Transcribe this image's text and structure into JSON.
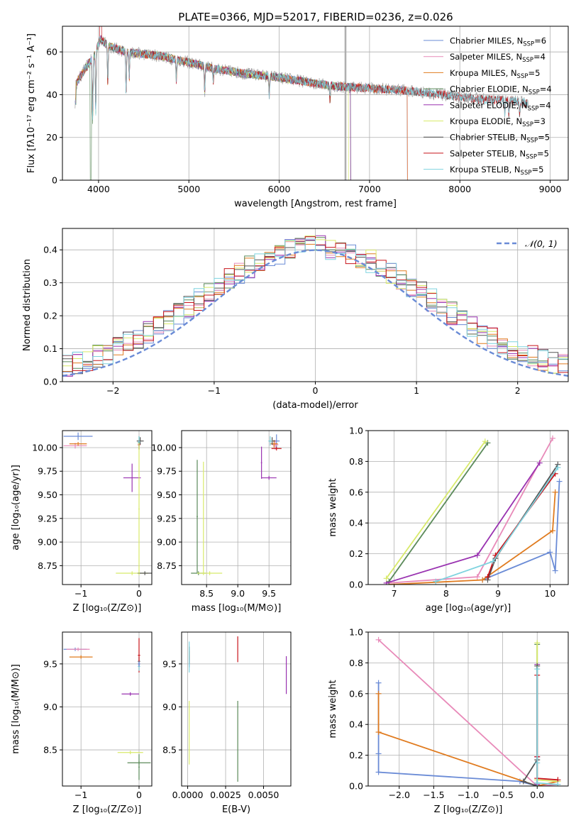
{
  "figure_title": "PLATE=0366, MJD=52017, FIBERID=0236, z=0.026",
  "colors": {
    "Chabrier MILES": "#6a8bd6",
    "Salpeter MILES": "#e88ab9",
    "Kroupa MILES": "#e07b1f",
    "Chabrier ELODIE": "#5b8a5a",
    "Salpeter ELODIE": "#9932b0",
    "Kroupa ELODIE": "#d8ea6a",
    "Chabrier STELIB": "#555555",
    "Salpeter STELIB": "#c8141b",
    "Kroupa STELIB": "#7ed3df",
    "reference": "#6a8bd6"
  },
  "chart_data": [
    {
      "id": "spectrum",
      "type": "line",
      "xlabel": "wavelength [Angstrom, rest frame]",
      "ylabel": "Flux [fλ10⁻¹⁷ erg cm⁻² s⁻¹ A⁻¹]",
      "xlim": [
        3600,
        9200
      ],
      "ylim": [
        0,
        72
      ],
      "xticks": [
        4000,
        5000,
        6000,
        7000,
        8000,
        9000
      ],
      "yticks": [
        0,
        20,
        40,
        60
      ],
      "grid": true,
      "legend_position": "top-right",
      "series": [
        {
          "name": "Chabrier MILES, N_SSP=6",
          "end": 7450,
          "nan_start": 7420
        },
        {
          "name": "Salpeter MILES, N_SSP=4",
          "end": 7450,
          "nan_start": 7420
        },
        {
          "name": "Kroupa MILES, N_SSP=5",
          "end": 7450,
          "nan_start": 7420
        },
        {
          "name": "Chabrier ELODIE, N_SSP=4",
          "end": 6800,
          "nan_start": 6790
        },
        {
          "name": "Salpeter ELODIE, N_SSP=4",
          "end": 6800,
          "nan_start": 6790
        },
        {
          "name": "Kroupa ELODIE, N_SSP=3",
          "end": 6800,
          "nan_start": 6770
        },
        {
          "name": "Chabrier STELIB, N_SSP=5",
          "end": 8750,
          "nan_start": null
        },
        {
          "name": "Salpeter STELIB, N_SSP=5",
          "end": 8750,
          "nan_start": null
        },
        {
          "name": "Kroupa STELIB, N_SSP=5",
          "end": 8750,
          "nan_start": null
        }
      ],
      "data_trace_color": "#aaaaaa",
      "data_spikes": [
        {
          "x": 6728,
          "ymin": 0,
          "ymax": 72
        },
        {
          "x": 6732,
          "ymin": 0,
          "ymax": 72
        },
        {
          "x": 6740,
          "ymin": 0,
          "ymax": 72
        }
      ],
      "continuum_points": [
        [
          3750,
          45
        ],
        [
          3850,
          52
        ],
        [
          3950,
          58
        ],
        [
          4020,
          66
        ],
        [
          4100,
          63
        ],
        [
          4300,
          60
        ],
        [
          4500,
          59
        ],
        [
          4700,
          58
        ],
        [
          5000,
          55
        ],
        [
          5300,
          52
        ],
        [
          5600,
          50
        ],
        [
          6000,
          48
        ],
        [
          6300,
          46
        ],
        [
          6600,
          44
        ],
        [
          7000,
          43
        ],
        [
          7400,
          42
        ],
        [
          7800,
          40
        ],
        [
          8200,
          38
        ],
        [
          8600,
          37
        ],
        [
          8750,
          36
        ]
      ],
      "absorption_features": [
        {
          "x": 3934,
          "depth": 30
        },
        {
          "x": 3969,
          "depth": 28
        },
        {
          "x": 4102,
          "depth": 18
        },
        {
          "x": 4305,
          "depth": 20
        },
        {
          "x": 4340,
          "depth": 12
        },
        {
          "x": 4861,
          "depth": 10
        },
        {
          "x": 5175,
          "depth": 12
        },
        {
          "x": 5270,
          "depth": 6
        },
        {
          "x": 5890,
          "depth": 9
        },
        {
          "x": 6563,
          "depth": 7
        },
        {
          "x": 8498,
          "depth": 6
        },
        {
          "x": 8542,
          "depth": 8
        },
        {
          "x": 8662,
          "depth": 7
        }
      ]
    },
    {
      "id": "residuals",
      "type": "histogram",
      "xlabel": "(data-model)/error",
      "ylabel": "Normed distribution",
      "xlim": [
        -2.5,
        2.5
      ],
      "ylim": [
        0,
        0.465
      ],
      "xticks": [
        -2,
        -1,
        0,
        1,
        2
      ],
      "yticks": [
        0.0,
        0.1,
        0.2,
        0.3,
        0.4
      ],
      "grid": true,
      "legend_position": "top-right",
      "reference_curve": {
        "label": "𝒩(0, 1)",
        "mean": 0,
        "sigma": 1
      },
      "bin_width": 0.1,
      "bin_start": -2.5
    },
    {
      "id": "age_vs_Z",
      "type": "errorbar",
      "xlabel": "Z [log₁₀(Z/Z⊙)]",
      "ylabel": "age  [log₁₀(age/yr)]",
      "xlim": [
        -1.32,
        0.22
      ],
      "ylim": [
        8.55,
        10.18
      ],
      "xticks": [
        -1,
        0
      ],
      "yticks": [
        8.75,
        9.0,
        9.25,
        9.5,
        9.75,
        10.0
      ],
      "grid": true,
      "points": [
        {
          "m": "Chabrier MILES",
          "x": -1.05,
          "y": 10.12,
          "xerr": 0.25,
          "yerr": 0.04
        },
        {
          "m": "Salpeter MILES",
          "x": -1.1,
          "y": 10.02,
          "xerr": 0.2,
          "yerr": 0.03
        },
        {
          "m": "Kroupa MILES",
          "x": -1.05,
          "y": 10.04,
          "xerr": 0.15,
          "yerr": 0.02
        },
        {
          "m": "Chabrier ELODIE",
          "x": 0.0,
          "y": 10.05,
          "xerr": 0.02,
          "yerr": 0.07
        },
        {
          "m": "Salpeter ELODIE",
          "x": -0.12,
          "y": 9.68,
          "xerr": 0.15,
          "yerr": 0.15
        },
        {
          "m": "Kroupa ELODIE",
          "x": -0.12,
          "y": 8.67,
          "xerr": 0.28,
          "yerr": 0.02
        },
        {
          "m": "Chabrier STELIB",
          "x": 0.1,
          "y": 8.67,
          "xerr": 0.12,
          "yerr": 0.02
        },
        {
          "m": "Chabrier STELIB",
          "x": 0.02,
          "y": 10.07,
          "xerr": 0.06,
          "yerr": 0.04
        },
        {
          "m": "Salpeter STELIB",
          "x": 0.0,
          "y": 10.03,
          "xerr": 0.02,
          "yerr": 0.05
        },
        {
          "m": "Kroupa STELIB",
          "x": 0.0,
          "y": 10.06,
          "xerr": 0.02,
          "yerr": 0.06
        },
        {
          "m": "Kroupa ELODIE",
          "x": 0.0,
          "y": 9.35,
          "xerr": 0.01,
          "yerr": 0.7
        }
      ]
    },
    {
      "id": "age_vs_mass",
      "type": "errorbar",
      "xlabel": "mass [log₁₀(M/M⊙)]",
      "ylabel": "",
      "xlim": [
        8.1,
        9.85
      ],
      "ylim": [
        8.55,
        10.18
      ],
      "xticks": [
        8.5,
        9.0,
        9.5
      ],
      "yticks": [
        8.75,
        9.0,
        9.25,
        9.5,
        9.75,
        10.0
      ],
      "grid": true,
      "points": [
        {
          "m": "Chabrier MILES",
          "x": 9.62,
          "y": 10.07,
          "xerr": 0.05,
          "yerr": 0.07
        },
        {
          "m": "Salpeter MILES",
          "x": 9.6,
          "y": 10.03,
          "xerr": 0.05,
          "yerr": 0.05
        },
        {
          "m": "Kroupa MILES",
          "x": 9.58,
          "y": 10.04,
          "xerr": 0.06,
          "yerr": 0.04
        },
        {
          "m": "Chabrier ELODIE",
          "x": 8.37,
          "y": 8.67,
          "xerr": 0.12,
          "yerr": 0.02
        },
        {
          "m": "Chabrier ELODIE",
          "x": 8.35,
          "y": 9.27,
          "xerr": 0.01,
          "yerr": 0.6
        },
        {
          "m": "Salpeter ELODIE",
          "x": 9.5,
          "y": 9.68,
          "xerr": 0.12,
          "yerr": 0.02
        },
        {
          "m": "Salpeter ELODIE",
          "x": 9.38,
          "y": 9.84,
          "xerr": 0.01,
          "yerr": 0.17
        },
        {
          "m": "Kroupa ELODIE",
          "x": 8.45,
          "y": 9.25,
          "xerr": 0.01,
          "yerr": 0.6
        },
        {
          "m": "Kroupa ELODIE",
          "x": 8.55,
          "y": 8.67,
          "xerr": 0.2,
          "yerr": 0.02
        },
        {
          "m": "Chabrier STELIB",
          "x": 9.55,
          "y": 10.07,
          "xerr": 0.05,
          "yerr": 0.04
        },
        {
          "m": "Salpeter STELIB",
          "x": 9.62,
          "y": 9.99,
          "xerr": 0.08,
          "yerr": 0.02
        },
        {
          "m": "Kroupa STELIB",
          "x": 9.52,
          "y": 10.07,
          "xerr": 0.03,
          "yerr": 0.05
        }
      ]
    },
    {
      "id": "weight_vs_age",
      "type": "line",
      "xlabel": "age  [log₁₀(age/yr)]",
      "ylabel": "mass weight",
      "xlim": [
        6.5,
        10.35
      ],
      "ylim": [
        0,
        1.0
      ],
      "xticks": [
        7,
        8,
        9,
        10
      ],
      "yticks": [
        0.0,
        0.2,
        0.4,
        0.6,
        0.8,
        1.0
      ],
      "grid": true,
      "series": [
        {
          "m": "Chabrier MILES",
          "points": [
            [
              8.7,
              0.03
            ],
            [
              10.0,
              0.21
            ],
            [
              10.1,
              0.09
            ],
            [
              10.18,
              0.67
            ]
          ]
        },
        {
          "m": "Salpeter MILES",
          "points": [
            [
              6.9,
              0.01
            ],
            [
              8.6,
              0.05
            ],
            [
              10.05,
              0.95
            ]
          ]
        },
        {
          "m": "Kroupa MILES",
          "points": [
            [
              6.9,
              0.0
            ],
            [
              8.7,
              0.03
            ],
            [
              10.05,
              0.35
            ],
            [
              10.1,
              0.6
            ]
          ]
        },
        {
          "m": "Chabrier ELODIE",
          "points": [
            [
              6.9,
              0.02
            ],
            [
              8.8,
              0.92
            ]
          ]
        },
        {
          "m": "Salpeter ELODIE",
          "points": [
            [
              6.85,
              0.01
            ],
            [
              8.6,
              0.19
            ],
            [
              9.8,
              0.79
            ]
          ]
        },
        {
          "m": "Kroupa ELODIE",
          "points": [
            [
              6.85,
              0.04
            ],
            [
              8.75,
              0.93
            ]
          ]
        },
        {
          "m": "Chabrier STELIB",
          "points": [
            [
              8.8,
              0.03
            ],
            [
              8.95,
              0.17
            ],
            [
              10.15,
              0.78
            ]
          ]
        },
        {
          "m": "Salpeter STELIB",
          "points": [
            [
              8.8,
              0.05
            ],
            [
              8.95,
              0.19
            ],
            [
              10.1,
              0.72
            ]
          ]
        },
        {
          "m": "Kroupa STELIB",
          "points": [
            [
              7.8,
              0.02
            ],
            [
              8.9,
              0.15
            ],
            [
              10.15,
              0.76
            ]
          ]
        }
      ]
    },
    {
      "id": "mass_vs_Z",
      "type": "errorbar",
      "xlabel": "Z [log₁₀(Z/Z⊙)]",
      "ylabel": "mass [log₁₀(M/M⊙)]",
      "xlim": [
        -1.32,
        0.22
      ],
      "ylim": [
        8.08,
        9.87
      ],
      "xticks": [
        -1,
        0
      ],
      "yticks": [
        8.5,
        9.0,
        9.5
      ],
      "grid": true,
      "points": [
        {
          "m": "Chabrier MILES",
          "x": -1.1,
          "y": 9.67,
          "xerr": 0.2,
          "yerr": 0.02
        },
        {
          "m": "Salpeter MILES",
          "x": -1.05,
          "y": 9.67,
          "xerr": 0.2,
          "yerr": 0.02
        },
        {
          "m": "Kroupa MILES",
          "x": -1.0,
          "y": 9.58,
          "xerr": 0.2,
          "yerr": 0.02
        },
        {
          "m": "Chabrier ELODIE",
          "x": 0.0,
          "y": 8.35,
          "xerr": 0.2,
          "yerr": 0.02
        },
        {
          "m": "Chabrier ELODIE",
          "x": 0.0,
          "y": 8.3,
          "xerr": 0.01,
          "yerr": 0.15
        },
        {
          "m": "Salpeter ELODIE",
          "x": -0.15,
          "y": 9.15,
          "xerr": 0.15,
          "yerr": 0.02
        },
        {
          "m": "Kroupa ELODIE",
          "x": -0.15,
          "y": 8.47,
          "xerr": 0.22,
          "yerr": 0.02
        },
        {
          "m": "Chabrier STELIB",
          "x": 0.0,
          "y": 9.53,
          "xerr": 0.02,
          "yerr": 0.05
        },
        {
          "m": "Salpeter STELIB",
          "x": 0.0,
          "y": 9.6,
          "xerr": 0.02,
          "yerr": 0.2
        },
        {
          "m": "Kroupa STELIB",
          "x": 0.0,
          "y": 9.47,
          "xerr": 0.02,
          "yerr": 0.05
        },
        {
          "m": "Chabrier MILES",
          "x": 0.0,
          "y": 9.5,
          "xerr": 0.02,
          "yerr": 0.03
        }
      ]
    },
    {
      "id": "mass_vs_EBV",
      "type": "errorbar",
      "xlabel": "E(B-V)",
      "ylabel": "",
      "xlim": [
        -0.0004,
        0.0068
      ],
      "ylim": [
        8.08,
        9.87
      ],
      "xticks": [
        0.0,
        0.0025,
        0.005
      ],
      "xtick_labels": [
        "0.0000",
        "0.0025",
        "0.0050"
      ],
      "yticks": [
        8.5,
        9.0,
        9.5
      ],
      "grid": true,
      "points": [
        {
          "m": "Chabrier MILES",
          "x": 0.0001,
          "y": 9.52,
          "xerr": 0.0,
          "yerr": 0.06
        },
        {
          "m": "Salpeter MILES",
          "x": 0.0001,
          "y": 9.55,
          "xerr": 0.0,
          "yerr": 0.05
        },
        {
          "m": "Kroupa MILES",
          "x": 0.0001,
          "y": 9.6,
          "xerr": 0.0,
          "yerr": 0.05
        },
        {
          "m": "Chabrier ELODIE",
          "x": 0.0033,
          "y": 8.6,
          "xerr": 0.0,
          "yerr": 0.47
        },
        {
          "m": "Salpeter ELODIE",
          "x": 0.0065,
          "y": 9.37,
          "xerr": 0.0,
          "yerr": 0.22
        },
        {
          "m": "Kroupa ELODIE",
          "x": 0.0001,
          "y": 8.7,
          "xerr": 0.0,
          "yerr": 0.37
        },
        {
          "m": "Chabrier STELIB",
          "x": 0.0001,
          "y": 9.6,
          "xerr": 0.0,
          "yerr": 0.1
        },
        {
          "m": "Salpeter STELIB",
          "x": 0.0033,
          "y": 9.67,
          "xerr": 0.0,
          "yerr": 0.15
        },
        {
          "m": "Kroupa STELIB",
          "x": 0.0001,
          "y": 9.58,
          "xerr": 0.0,
          "yerr": 0.18
        }
      ]
    },
    {
      "id": "weight_vs_Z",
      "type": "line",
      "xlabel": "Z [log₁₀(Z/Z⊙)]",
      "ylabel": "mass weight",
      "xlim": [
        -2.45,
        0.45
      ],
      "ylim": [
        0,
        1.0
      ],
      "xticks": [
        -2.0,
        -1.5,
        -1.0,
        -0.5,
        0.0
      ],
      "yticks": [
        0.0,
        0.2,
        0.4,
        0.6,
        0.8,
        1.0
      ],
      "grid": true,
      "series": [
        {
          "m": "Chabrier MILES",
          "points": [
            [
              -2.3,
              0.67
            ],
            [
              -2.3,
              0.21
            ],
            [
              -2.3,
              0.09
            ],
            [
              -0.25,
              0.03
            ],
            [
              0.0,
              0.0
            ]
          ]
        },
        {
          "m": "Salpeter MILES",
          "points": [
            [
              -2.3,
              0.95
            ],
            [
              0.0,
              0.0
            ],
            [
              0.3,
              0.01
            ]
          ]
        },
        {
          "m": "Kroupa MILES",
          "points": [
            [
              -2.3,
              0.6
            ],
            [
              -2.3,
              0.35
            ],
            [
              0.0,
              0.0
            ],
            [
              0.3,
              0.03
            ]
          ]
        },
        {
          "m": "Chabrier ELODIE",
          "points": [
            [
              0.0,
              0.92
            ],
            [
              0.0,
              0.02
            ],
            [
              0.0,
              0.0
            ]
          ]
        },
        {
          "m": "Salpeter ELODIE",
          "points": [
            [
              0.0,
              0.79
            ],
            [
              0.0,
              0.19
            ],
            [
              0.0,
              0.01
            ]
          ]
        },
        {
          "m": "Kroupa ELODIE",
          "points": [
            [
              0.0,
              0.93
            ],
            [
              0.0,
              0.04
            ],
            [
              0.3,
              0.03
            ]
          ]
        },
        {
          "m": "Chabrier STELIB",
          "points": [
            [
              0.0,
              0.78
            ],
            [
              0.0,
              0.17
            ],
            [
              -0.2,
              0.03
            ],
            [
              0.0,
              0.0
            ]
          ]
        },
        {
          "m": "Salpeter STELIB",
          "points": [
            [
              0.0,
              0.72
            ],
            [
              0.0,
              0.19
            ],
            [
              0.0,
              0.05
            ],
            [
              0.3,
              0.04
            ]
          ]
        },
        {
          "m": "Kroupa STELIB",
          "points": [
            [
              0.0,
              0.76
            ],
            [
              0.0,
              0.15
            ],
            [
              0.0,
              0.02
            ],
            [
              0.3,
              0.01
            ]
          ]
        }
      ]
    }
  ]
}
